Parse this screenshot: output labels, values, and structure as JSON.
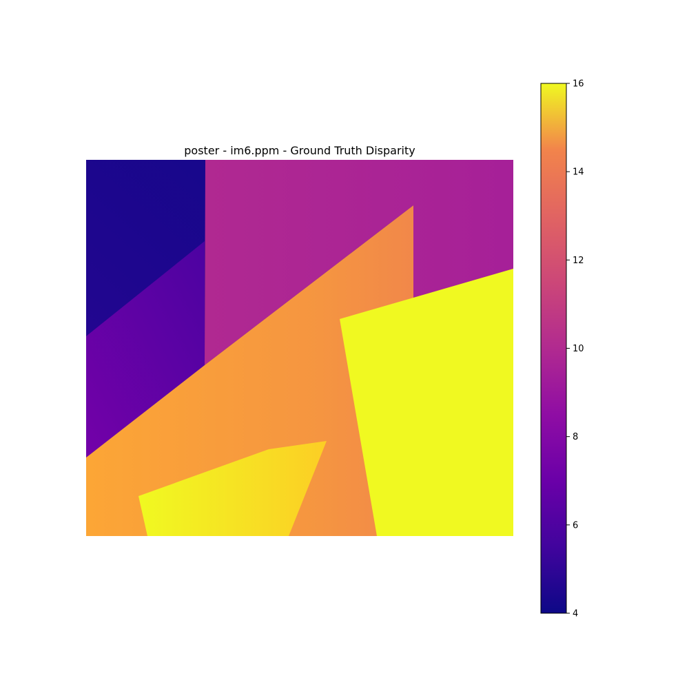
{
  "chart_data": {
    "type": "heatmap",
    "title": "poster - im6.ppm - Ground Truth Disparity",
    "colormap": "plasma",
    "axes_visible": false,
    "colorbar": {
      "placement": "right",
      "range": [
        4,
        16
      ],
      "ticks": [
        4,
        6,
        8,
        10,
        12,
        14,
        16
      ],
      "tick_labels": [
        "4",
        "6",
        "8",
        "10",
        "12",
        "14",
        "16"
      ]
    },
    "regions": [
      {
        "name": "background-top-left",
        "disparity_range": [
          4.2,
          5.0
        ]
      },
      {
        "name": "lower-left-diagonal",
        "disparity_range": [
          5.4,
          7.4
        ]
      },
      {
        "name": "upper-right-background",
        "disparity_range": [
          8.2,
          9.0
        ]
      },
      {
        "name": "large-orange-poster",
        "disparity_range": [
          12.0,
          14.5
        ]
      },
      {
        "name": "right-yellow-poster",
        "disparity_range": [
          15.5,
          16.0
        ]
      },
      {
        "name": "bottom-yellow-poster",
        "disparity_range": [
          14.5,
          16.0
        ]
      }
    ]
  }
}
